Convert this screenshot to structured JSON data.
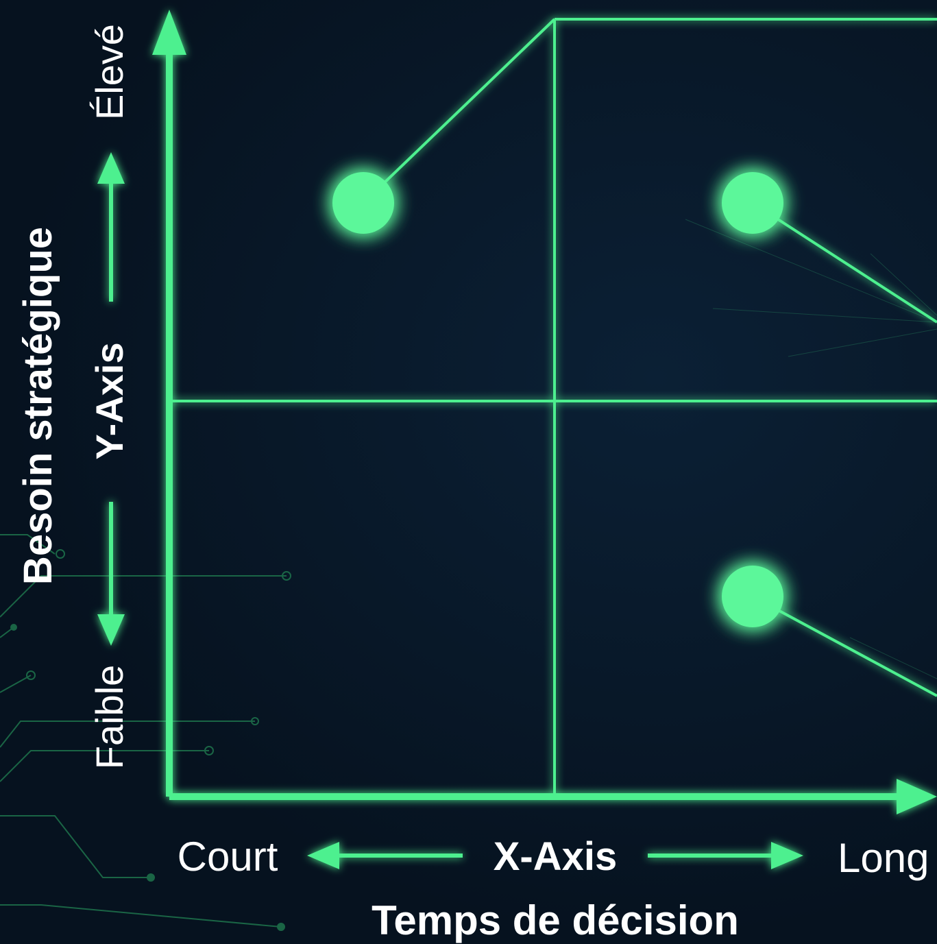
{
  "x_axis": {
    "name": "X-Axis",
    "title": "Temps de décision",
    "low": "Court",
    "high": "Long"
  },
  "y_axis": {
    "name": "Y-Axis",
    "title": "Besoin stratégique",
    "low": "Faible",
    "high": "Élevé"
  },
  "colors": {
    "background": "#071527",
    "accent": "#4ef08f",
    "dot": "#5cf79a",
    "text": "#ffffff"
  }
}
